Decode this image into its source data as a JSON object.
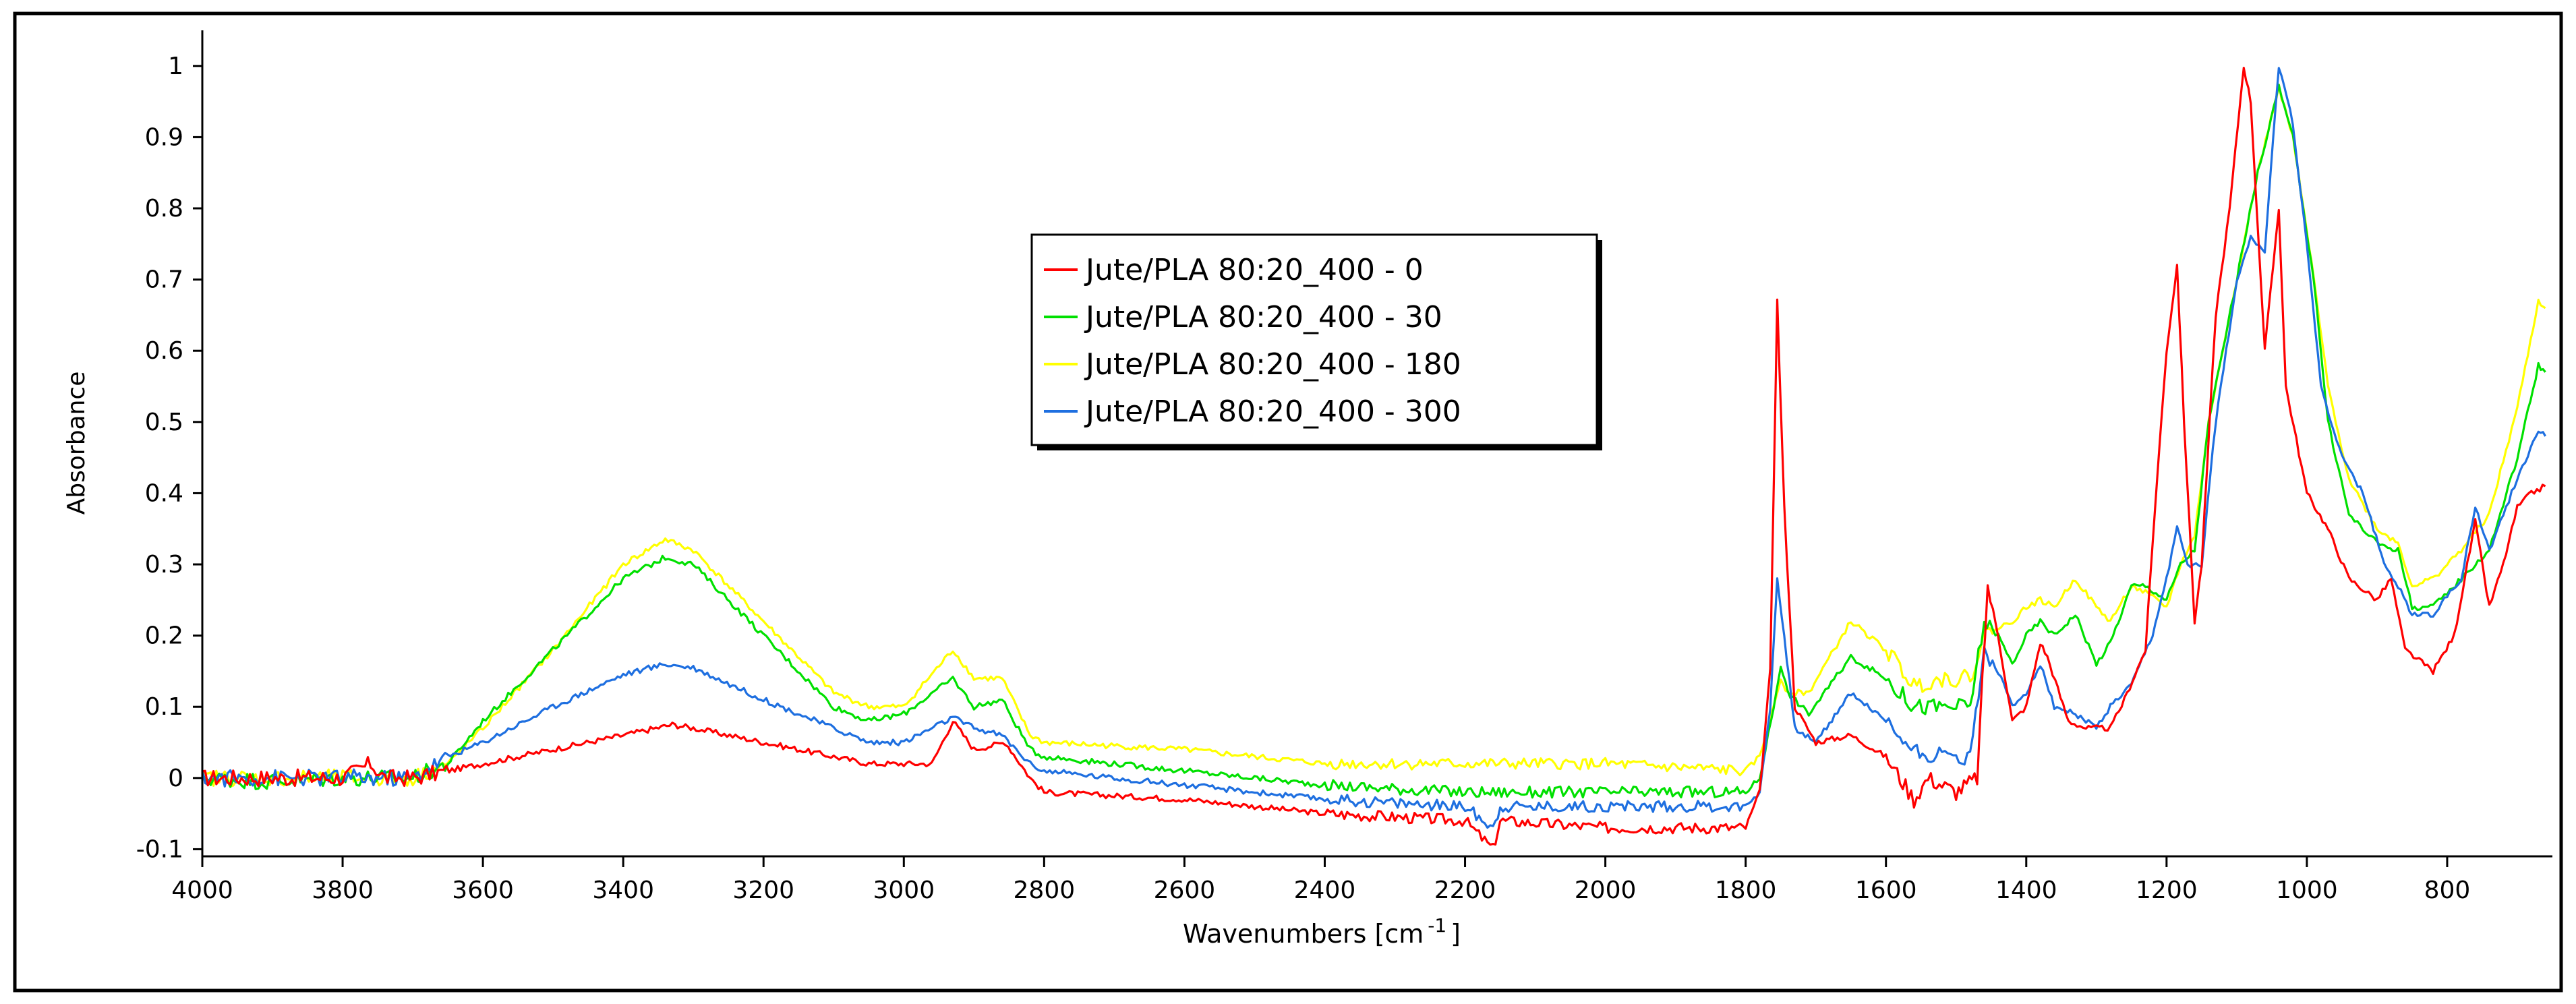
{
  "chart_data": {
    "type": "line",
    "title": "",
    "xlabel": "Wavenumbers [cm",
    "xlabel_sup": "-1",
    "xlabel_end": "]",
    "ylabel": "Absorbance",
    "xlim": [
      4000,
      650
    ],
    "ylim": [
      -0.11,
      1.05
    ],
    "x_reversed": true,
    "grid": false,
    "legend_position": "upper-center",
    "xticks": [
      4000,
      3800,
      3600,
      3400,
      3200,
      3000,
      2800,
      2600,
      2400,
      2200,
      2000,
      1800,
      1600,
      1400,
      1200,
      1000,
      800
    ],
    "xtick_labels": [
      "4000",
      "3800",
      "3600",
      "3400",
      "3200",
      "3000",
      "2800",
      "2600",
      "2400",
      "2200",
      "2000",
      "1800",
      "1600",
      "1400",
      "1200",
      "1000",
      "800"
    ],
    "yticks": [
      -0.1,
      0,
      0.1,
      0.2,
      0.3,
      0.4,
      0.5,
      0.6,
      0.7,
      0.8,
      0.9,
      1
    ],
    "ytick_labels": [
      "-0.1",
      "0",
      "0.1",
      "0.2",
      "0.3",
      "0.4",
      "0.5",
      "0.6",
      "0.7",
      "0.8",
      "0.9",
      "1"
    ],
    "series": [
      {
        "name": "Jute/PLA 80:20_400 - 0",
        "color": "#ff0000",
        "points": [
          [
            4000,
            0.0
          ],
          [
            3900,
            0.0
          ],
          [
            3800,
            0.0
          ],
          [
            3760,
            0.02
          ],
          [
            3740,
            0.0
          ],
          [
            3700,
            0.0
          ],
          [
            3600,
            0.02
          ],
          [
            3500,
            0.04
          ],
          [
            3400,
            0.06
          ],
          [
            3330,
            0.075
          ],
          [
            3300,
            0.07
          ],
          [
            3200,
            0.05
          ],
          [
            3100,
            0.03
          ],
          [
            3050,
            0.02
          ],
          [
            3000,
            0.02
          ],
          [
            2960,
            0.02
          ],
          [
            2930,
            0.08
          ],
          [
            2900,
            0.04
          ],
          [
            2855,
            0.05
          ],
          [
            2820,
            0.0
          ],
          [
            2800,
            -0.02
          ],
          [
            2600,
            -0.03
          ],
          [
            2400,
            -0.05
          ],
          [
            2200,
            -0.06
          ],
          [
            2160,
            -0.1
          ],
          [
            2150,
            -0.06
          ],
          [
            2000,
            -0.07
          ],
          [
            1800,
            -0.07
          ],
          [
            1780,
            -0.02
          ],
          [
            1765,
            0.15
          ],
          [
            1755,
            0.67
          ],
          [
            1745,
            0.38
          ],
          [
            1730,
            0.1
          ],
          [
            1700,
            0.05
          ],
          [
            1650,
            0.06
          ],
          [
            1600,
            0.03
          ],
          [
            1560,
            -0.03
          ],
          [
            1540,
            0.0
          ],
          [
            1500,
            -0.02
          ],
          [
            1470,
            0.0
          ],
          [
            1455,
            0.27
          ],
          [
            1440,
            0.2
          ],
          [
            1420,
            0.08
          ],
          [
            1400,
            0.1
          ],
          [
            1380,
            0.19
          ],
          [
            1370,
            0.17
          ],
          [
            1340,
            0.08
          ],
          [
            1315,
            0.07
          ],
          [
            1300,
            0.07
          ],
          [
            1280,
            0.07
          ],
          [
            1260,
            0.11
          ],
          [
            1230,
            0.18
          ],
          [
            1215,
            0.4
          ],
          [
            1200,
            0.6
          ],
          [
            1185,
            0.72
          ],
          [
            1175,
            0.5
          ],
          [
            1160,
            0.22
          ],
          [
            1150,
            0.3
          ],
          [
            1130,
            0.65
          ],
          [
            1110,
            0.8
          ],
          [
            1090,
            1.0
          ],
          [
            1080,
            0.95
          ],
          [
            1060,
            0.6
          ],
          [
            1040,
            0.8
          ],
          [
            1030,
            0.55
          ],
          [
            1000,
            0.4
          ],
          [
            970,
            0.35
          ],
          [
            940,
            0.28
          ],
          [
            900,
            0.25
          ],
          [
            880,
            0.28
          ],
          [
            860,
            0.18
          ],
          [
            820,
            0.15
          ],
          [
            790,
            0.2
          ],
          [
            760,
            0.36
          ],
          [
            740,
            0.24
          ],
          [
            720,
            0.3
          ],
          [
            700,
            0.38
          ],
          [
            680,
            0.4
          ],
          [
            660,
            0.41
          ]
        ]
      },
      {
        "name": "Jute/PLA 80:20_400 - 30",
        "color": "#00e000",
        "points": [
          [
            4000,
            0.0
          ],
          [
            3900,
            -0.005
          ],
          [
            3800,
            0.0
          ],
          [
            3700,
            0.0
          ],
          [
            3650,
            0.02
          ],
          [
            3600,
            0.08
          ],
          [
            3500,
            0.18
          ],
          [
            3400,
            0.28
          ],
          [
            3340,
            0.31
          ],
          [
            3300,
            0.3
          ],
          [
            3200,
            0.2
          ],
          [
            3100,
            0.1
          ],
          [
            3050,
            0.08
          ],
          [
            3000,
            0.09
          ],
          [
            2930,
            0.14
          ],
          [
            2900,
            0.1
          ],
          [
            2860,
            0.11
          ],
          [
            2820,
            0.04
          ],
          [
            2800,
            0.03
          ],
          [
            2600,
            0.01
          ],
          [
            2400,
            -0.01
          ],
          [
            2200,
            -0.02
          ],
          [
            2000,
            -0.02
          ],
          [
            1800,
            -0.02
          ],
          [
            1780,
            0.0
          ],
          [
            1760,
            0.1
          ],
          [
            1750,
            0.16
          ],
          [
            1740,
            0.12
          ],
          [
            1710,
            0.09
          ],
          [
            1650,
            0.17
          ],
          [
            1600,
            0.14
          ],
          [
            1560,
            0.1
          ],
          [
            1520,
            0.1
          ],
          [
            1480,
            0.1
          ],
          [
            1460,
            0.22
          ],
          [
            1440,
            0.2
          ],
          [
            1420,
            0.16
          ],
          [
            1400,
            0.2
          ],
          [
            1380,
            0.22
          ],
          [
            1360,
            0.2
          ],
          [
            1330,
            0.23
          ],
          [
            1300,
            0.16
          ],
          [
            1280,
            0.19
          ],
          [
            1250,
            0.27
          ],
          [
            1230,
            0.27
          ],
          [
            1200,
            0.25
          ],
          [
            1180,
            0.3
          ],
          [
            1160,
            0.32
          ],
          [
            1140,
            0.5
          ],
          [
            1100,
            0.7
          ],
          [
            1070,
            0.85
          ],
          [
            1040,
            0.97
          ],
          [
            1020,
            0.9
          ],
          [
            990,
            0.7
          ],
          [
            970,
            0.5
          ],
          [
            940,
            0.37
          ],
          [
            900,
            0.33
          ],
          [
            870,
            0.32
          ],
          [
            850,
            0.24
          ],
          [
            820,
            0.24
          ],
          [
            780,
            0.28
          ],
          [
            740,
            0.32
          ],
          [
            700,
            0.45
          ],
          [
            670,
            0.58
          ],
          [
            660,
            0.57
          ]
        ]
      },
      {
        "name": "Jute/PLA 80:20_400 - 180",
        "color": "#ffff00",
        "points": [
          [
            4000,
            0.0
          ],
          [
            3900,
            0.0
          ],
          [
            3800,
            0.0
          ],
          [
            3700,
            0.0
          ],
          [
            3650,
            0.02
          ],
          [
            3600,
            0.07
          ],
          [
            3500,
            0.18
          ],
          [
            3400,
            0.3
          ],
          [
            3340,
            0.335
          ],
          [
            3300,
            0.32
          ],
          [
            3200,
            0.22
          ],
          [
            3100,
            0.12
          ],
          [
            3050,
            0.1
          ],
          [
            3000,
            0.1
          ],
          [
            2930,
            0.18
          ],
          [
            2900,
            0.14
          ],
          [
            2860,
            0.14
          ],
          [
            2820,
            0.06
          ],
          [
            2800,
            0.05
          ],
          [
            2600,
            0.04
          ],
          [
            2400,
            0.02
          ],
          [
            2200,
            0.02
          ],
          [
            2000,
            0.02
          ],
          [
            1800,
            0.01
          ],
          [
            1780,
            0.03
          ],
          [
            1760,
            0.1
          ],
          [
            1750,
            0.14
          ],
          [
            1740,
            0.12
          ],
          [
            1710,
            0.12
          ],
          [
            1650,
            0.22
          ],
          [
            1600,
            0.18
          ],
          [
            1560,
            0.13
          ],
          [
            1520,
            0.14
          ],
          [
            1480,
            0.14
          ],
          [
            1460,
            0.2
          ],
          [
            1440,
            0.21
          ],
          [
            1420,
            0.22
          ],
          [
            1400,
            0.24
          ],
          [
            1380,
            0.25
          ],
          [
            1360,
            0.24
          ],
          [
            1330,
            0.28
          ],
          [
            1300,
            0.24
          ],
          [
            1280,
            0.22
          ],
          [
            1250,
            0.27
          ],
          [
            1230,
            0.26
          ],
          [
            1200,
            0.24
          ],
          [
            1180,
            0.3
          ],
          [
            1160,
            0.34
          ],
          [
            1140,
            0.5
          ],
          [
            1100,
            0.7
          ],
          [
            1070,
            0.85
          ],
          [
            1040,
            0.97
          ],
          [
            1020,
            0.9
          ],
          [
            990,
            0.7
          ],
          [
            970,
            0.55
          ],
          [
            940,
            0.42
          ],
          [
            900,
            0.35
          ],
          [
            870,
            0.33
          ],
          [
            850,
            0.27
          ],
          [
            820,
            0.28
          ],
          [
            780,
            0.32
          ],
          [
            740,
            0.37
          ],
          [
            700,
            0.52
          ],
          [
            670,
            0.67
          ],
          [
            660,
            0.66
          ]
        ]
      },
      {
        "name": "Jute/PLA 80:20_400 - 300",
        "color": "#1e6fe0",
        "points": [
          [
            4000,
            0.0
          ],
          [
            3900,
            0.0
          ],
          [
            3800,
            0.0
          ],
          [
            3700,
            0.0
          ],
          [
            3650,
            0.03
          ],
          [
            3600,
            0.05
          ],
          [
            3500,
            0.1
          ],
          [
            3400,
            0.145
          ],
          [
            3340,
            0.16
          ],
          [
            3300,
            0.155
          ],
          [
            3200,
            0.11
          ],
          [
            3100,
            0.07
          ],
          [
            3050,
            0.05
          ],
          [
            3000,
            0.05
          ],
          [
            2930,
            0.085
          ],
          [
            2900,
            0.07
          ],
          [
            2860,
            0.06
          ],
          [
            2820,
            0.02
          ],
          [
            2800,
            0.01
          ],
          [
            2600,
            -0.01
          ],
          [
            2400,
            -0.03
          ],
          [
            2200,
            -0.04
          ],
          [
            2160,
            -0.07
          ],
          [
            2150,
            -0.04
          ],
          [
            2000,
            -0.04
          ],
          [
            1800,
            -0.04
          ],
          [
            1780,
            -0.02
          ],
          [
            1765,
            0.1
          ],
          [
            1755,
            0.28
          ],
          [
            1745,
            0.2
          ],
          [
            1730,
            0.07
          ],
          [
            1700,
            0.05
          ],
          [
            1650,
            0.12
          ],
          [
            1600,
            0.08
          ],
          [
            1560,
            0.04
          ],
          [
            1520,
            0.03
          ],
          [
            1480,
            0.03
          ],
          [
            1460,
            0.18
          ],
          [
            1440,
            0.15
          ],
          [
            1420,
            0.1
          ],
          [
            1400,
            0.12
          ],
          [
            1380,
            0.16
          ],
          [
            1360,
            0.1
          ],
          [
            1330,
            0.09
          ],
          [
            1300,
            0.07
          ],
          [
            1280,
            0.1
          ],
          [
            1250,
            0.13
          ],
          [
            1220,
            0.2
          ],
          [
            1200,
            0.28
          ],
          [
            1185,
            0.35
          ],
          [
            1170,
            0.3
          ],
          [
            1150,
            0.3
          ],
          [
            1130,
            0.5
          ],
          [
            1100,
            0.7
          ],
          [
            1080,
            0.76
          ],
          [
            1060,
            0.74
          ],
          [
            1040,
            1.0
          ],
          [
            1020,
            0.92
          ],
          [
            1000,
            0.75
          ],
          [
            980,
            0.55
          ],
          [
            950,
            0.45
          ],
          [
            920,
            0.4
          ],
          [
            890,
            0.3
          ],
          [
            870,
            0.27
          ],
          [
            850,
            0.23
          ],
          [
            820,
            0.23
          ],
          [
            780,
            0.28
          ],
          [
            760,
            0.38
          ],
          [
            740,
            0.32
          ],
          [
            700,
            0.42
          ],
          [
            670,
            0.49
          ],
          [
            660,
            0.48
          ]
        ]
      }
    ]
  }
}
